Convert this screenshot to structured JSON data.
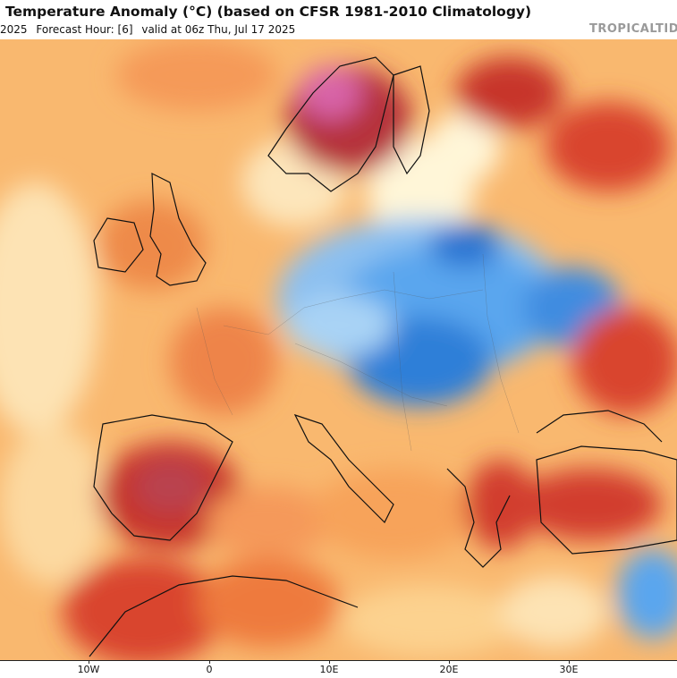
{
  "header": {
    "title": "Temperature Anomaly (°C) (based on CFSR 1981-2010 Climatology)",
    "run_fragment": "2025",
    "forecast_hour": "Forecast Hour: [6]",
    "valid_time": "valid at 06z Thu, Jul 17 2025",
    "brand": "TROPICALTID"
  },
  "axis": {
    "ticks": [
      "10W",
      "0",
      "10E",
      "20E",
      "30E"
    ]
  },
  "colors": {
    "cold_strong": "#1f6fd0",
    "cold": "#5aa6ee",
    "cool": "#a9d3f5",
    "neutral": "#fff6d8",
    "warm_light": "#fcd28f",
    "warm": "#f7a35a",
    "hot": "#e8672e",
    "very_hot": "#c7362a",
    "extreme": "#9e2a45",
    "extreme_pink": "#d864a8",
    "coast": "#111111"
  }
}
